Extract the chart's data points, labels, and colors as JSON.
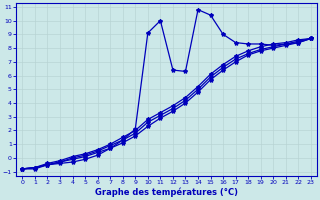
{
  "xlabel": "Graphe des températures (°C)",
  "background_color": "#cce8e8",
  "grid_color": "#b8d4d4",
  "line_color": "#0000bb",
  "xlim": [
    0,
    23
  ],
  "ylim": [
    -1,
    11
  ],
  "xticks": [
    0,
    1,
    2,
    3,
    4,
    5,
    6,
    7,
    8,
    9,
    10,
    11,
    12,
    13,
    14,
    15,
    16,
    17,
    18,
    19,
    20,
    21,
    22,
    23
  ],
  "yticks": [
    -1,
    0,
    1,
    2,
    3,
    4,
    5,
    6,
    7,
    8,
    9,
    10,
    11
  ],
  "peaked_x": [
    0,
    1,
    2,
    3,
    4,
    5,
    6,
    7,
    8,
    9,
    10,
    11,
    12,
    13,
    14,
    15,
    16,
    17,
    18,
    19,
    20,
    21,
    22,
    23
  ],
  "peaked_y": [
    -0.8,
    -0.8,
    -0.5,
    -0.4,
    -0.3,
    -0.1,
    0.2,
    0.7,
    1.3,
    2.1,
    9.1,
    10.0,
    6.4,
    6.3,
    10.8,
    10.4,
    9.0,
    8.4,
    8.3,
    8.3,
    8.2,
    8.3,
    8.4,
    8.7
  ],
  "line2_x": [
    0,
    1,
    2,
    3,
    4,
    5,
    6,
    7,
    8,
    9,
    10,
    11,
    12,
    13,
    14,
    15,
    16,
    17,
    18,
    19,
    20,
    21,
    22,
    23
  ],
  "line2_y": [
    -0.8,
    -0.7,
    -0.5,
    -0.3,
    -0.1,
    0.1,
    0.4,
    0.7,
    1.1,
    1.6,
    2.3,
    2.9,
    3.4,
    4.0,
    4.8,
    5.7,
    6.4,
    7.0,
    7.5,
    7.8,
    8.0,
    8.2,
    8.4,
    8.7
  ],
  "line3_x": [
    0,
    1,
    2,
    3,
    4,
    5,
    6,
    7,
    8,
    9,
    10,
    11,
    12,
    13,
    14,
    15,
    16,
    17,
    18,
    19,
    20,
    21,
    22,
    23
  ],
  "line3_y": [
    -0.8,
    -0.7,
    -0.5,
    -0.3,
    0.0,
    0.2,
    0.5,
    0.9,
    1.3,
    1.8,
    2.6,
    3.1,
    3.6,
    4.2,
    5.0,
    5.9,
    6.6,
    7.2,
    7.6,
    7.9,
    8.1,
    8.3,
    8.5,
    8.7
  ],
  "line4_x": [
    0,
    1,
    2,
    3,
    4,
    5,
    6,
    7,
    8,
    9,
    10,
    11,
    12,
    13,
    14,
    15,
    16,
    17,
    18,
    19,
    20,
    21,
    22,
    23
  ],
  "line4_y": [
    -0.8,
    -0.7,
    -0.4,
    -0.2,
    0.1,
    0.3,
    0.6,
    1.0,
    1.5,
    2.0,
    2.8,
    3.3,
    3.8,
    4.4,
    5.2,
    6.1,
    6.8,
    7.4,
    7.8,
    8.1,
    8.3,
    8.4,
    8.6,
    8.7
  ]
}
